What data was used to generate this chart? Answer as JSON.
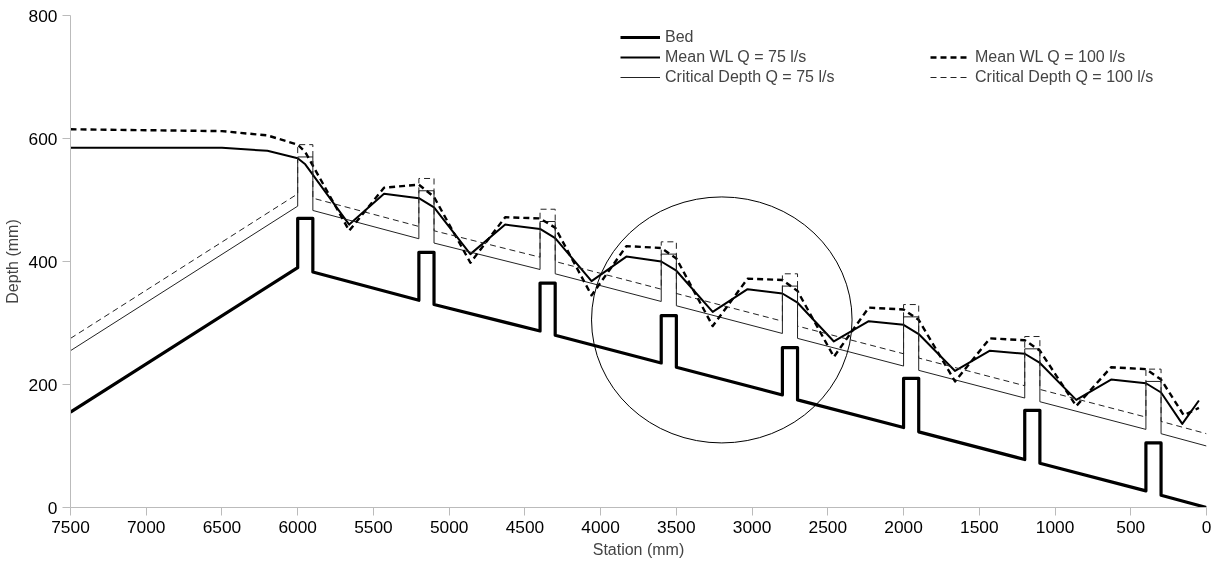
{
  "chart_data": {
    "type": "line",
    "xlabel": "Station (mm)",
    "ylabel": "Depth (mm)",
    "xlim": [
      7500,
      0
    ],
    "ylim": [
      0,
      800
    ],
    "xticks": [
      7500,
      7000,
      6500,
      6000,
      5500,
      5000,
      4500,
      4000,
      3500,
      3000,
      2500,
      2000,
      1500,
      1000,
      500,
      0
    ],
    "yticks": [
      0,
      200,
      400,
      600,
      800
    ],
    "grid": false,
    "legend": "top right",
    "series": [
      {
        "name": "Bed",
        "color": "#000000",
        "line_style": "solid",
        "x": [
          7500,
          6000,
          6000,
          5900,
          5900,
          5200,
          5200,
          5100,
          5100,
          4400,
          4400,
          4300,
          4300,
          3600,
          3600,
          3500,
          3500,
          2800,
          2800,
          2700,
          2700,
          2000,
          2000,
          1900,
          1900,
          1200,
          1200,
          1100,
          1100,
          400,
          400,
          300,
          300,
          0
        ],
        "values": [
          155,
          390,
          470,
          470,
          383,
          337,
          415,
          415,
          330,
          287,
          365,
          365,
          280,
          235,
          312,
          312,
          228,
          183,
          260,
          260,
          175,
          130,
          210,
          210,
          123,
          78,
          158,
          158,
          72,
          27,
          105,
          105,
          20,
          0
        ]
      },
      {
        "name": "Mean WL Q = 75 l/s",
        "color": "#000000",
        "line_style": "solid",
        "x": [
          7500,
          6500,
          6200,
          6000,
          5950,
          5660,
          5430,
          5200,
          5100,
          4860,
          4630,
          4400,
          4300,
          4060,
          3830,
          3600,
          3500,
          3260,
          3030,
          2800,
          2700,
          2460,
          2230,
          2000,
          1900,
          1660,
          1430,
          1200,
          1100,
          860,
          630,
          400,
          300,
          160,
          50
        ],
        "values": [
          585,
          585,
          580,
          568,
          558,
          460,
          510,
          503,
          488,
          412,
          460,
          453,
          438,
          368,
          408,
          400,
          385,
          318,
          355,
          348,
          333,
          270,
          303,
          297,
          282,
          222,
          255,
          250,
          235,
          175,
          208,
          202,
          187,
          136,
          174
        ]
      },
      {
        "name": "Critical Depth Q = 75 l/s",
        "color": "#222222",
        "line_style": "solid",
        "x": [
          7500,
          6000,
          6000,
          5900,
          5900,
          5200,
          5200,
          5100,
          5100,
          4400,
          4400,
          4300,
          4300,
          3600,
          3600,
          3500,
          3500,
          2800,
          2800,
          2700,
          2700,
          2000,
          2000,
          1900,
          1900,
          1200,
          1200,
          1100,
          1100,
          400,
          400,
          300,
          300,
          0
        ],
        "values": [
          255,
          490,
          570,
          570,
          483,
          437,
          515,
          515,
          430,
          387,
          465,
          465,
          380,
          335,
          412,
          412,
          328,
          283,
          360,
          360,
          275,
          230,
          310,
          310,
          223,
          178,
          258,
          258,
          172,
          127,
          205,
          205,
          120,
          100
        ]
      },
      {
        "name": "Mean WL Q = 100 l/s",
        "color": "#000000",
        "line_style": "dashed",
        "x": [
          7500,
          6500,
          6200,
          6000,
          5950,
          5660,
          5430,
          5200,
          5100,
          4860,
          4630,
          4400,
          4300,
          4060,
          3830,
          3600,
          3500,
          3260,
          3030,
          2800,
          2700,
          2460,
          2230,
          2000,
          1900,
          1660,
          1430,
          1200,
          1100,
          860,
          630,
          400,
          300,
          150,
          50
        ],
        "values": [
          615,
          612,
          605,
          590,
          578,
          450,
          520,
          525,
          505,
          398,
          472,
          470,
          455,
          345,
          425,
          422,
          405,
          295,
          372,
          370,
          352,
          245,
          325,
          322,
          305,
          205,
          275,
          272,
          255,
          165,
          228,
          225,
          208,
          150,
          162
        ]
      },
      {
        "name": "Critical Depth Q = 100 l/s",
        "color": "#222222",
        "line_style": "dashed",
        "x": [
          7500,
          6000,
          6000,
          5900,
          5900,
          5200,
          5200,
          5100,
          5100,
          4400,
          4400,
          4300,
          4300,
          3600,
          3600,
          3500,
          3500,
          2800,
          2800,
          2700,
          2700,
          2000,
          2000,
          1900,
          1900,
          1200,
          1200,
          1100,
          1100,
          400,
          400,
          300,
          300,
          0
        ],
        "values": [
          275,
          510,
          590,
          590,
          503,
          457,
          535,
          535,
          450,
          407,
          485,
          485,
          400,
          355,
          432,
          432,
          348,
          303,
          380,
          380,
          295,
          250,
          330,
          330,
          243,
          198,
          278,
          278,
          192,
          147,
          225,
          225,
          140,
          120
        ]
      }
    ]
  }
}
